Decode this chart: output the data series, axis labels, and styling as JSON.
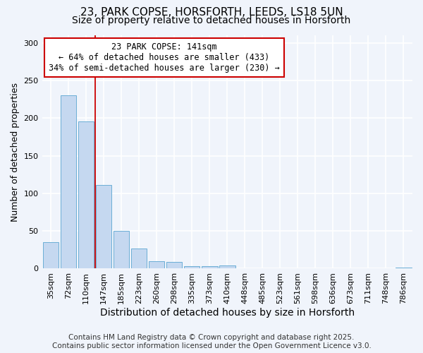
{
  "title": "23, PARK COPSE, HORSFORTH, LEEDS, LS18 5UN",
  "subtitle": "Size of property relative to detached houses in Horsforth",
  "xlabel": "Distribution of detached houses by size in Horsforth",
  "ylabel": "Number of detached properties",
  "categories": [
    "35sqm",
    "72sqm",
    "110sqm",
    "147sqm",
    "185sqm",
    "223sqm",
    "260sqm",
    "298sqm",
    "335sqm",
    "373sqm",
    "410sqm",
    "448sqm",
    "485sqm",
    "523sqm",
    "561sqm",
    "598sqm",
    "636sqm",
    "673sqm",
    "711sqm",
    "748sqm",
    "786sqm"
  ],
  "values": [
    35,
    230,
    196,
    111,
    50,
    27,
    10,
    9,
    3,
    3,
    4,
    0,
    0,
    0,
    0,
    0,
    0,
    0,
    0,
    0,
    1
  ],
  "bar_color": "#c5d8f0",
  "bar_edge_color": "#6baed6",
  "property_line_x": 2.5,
  "annotation_title": "23 PARK COPSE: 141sqm",
  "annotation_line1": "← 64% of detached houses are smaller (433)",
  "annotation_line2": "34% of semi-detached houses are larger (230) →",
  "vline_color": "#cc0000",
  "annotation_box_edge": "#cc0000",
  "annotation_box_bg": "#ffffff",
  "ylim": [
    0,
    310
  ],
  "yticks": [
    0,
    50,
    100,
    150,
    200,
    250,
    300
  ],
  "footer_line1": "Contains HM Land Registry data © Crown copyright and database right 2025.",
  "footer_line2": "Contains public sector information licensed under the Open Government Licence v3.0.",
  "bg_color": "#f0f4fb",
  "plot_bg_color": "#f0f4fb",
  "grid_color": "#ffffff",
  "title_fontsize": 11,
  "subtitle_fontsize": 10,
  "ylabel_fontsize": 9,
  "xlabel_fontsize": 10,
  "tick_fontsize": 8,
  "annot_fontsize": 8.5,
  "footer_fontsize": 7.5
}
